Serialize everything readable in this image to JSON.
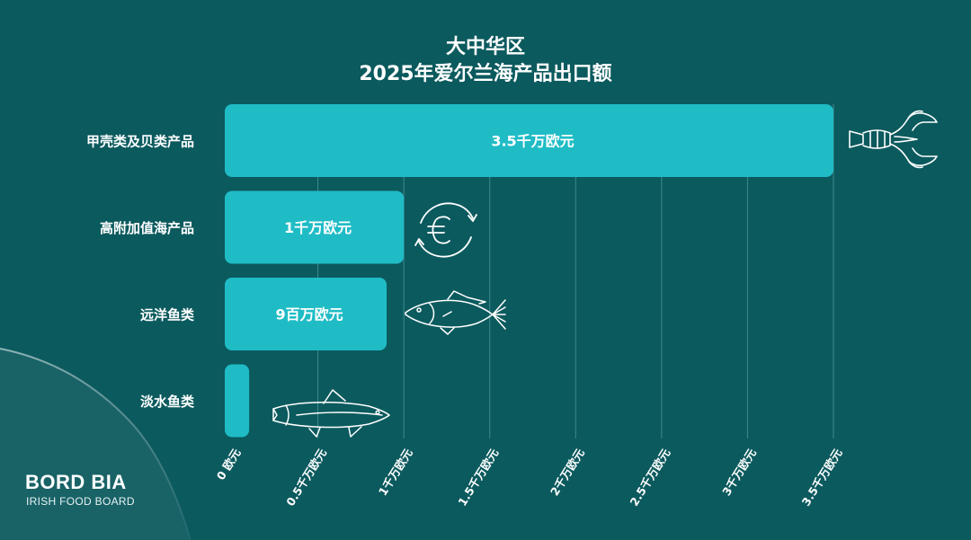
{
  "chart_data": {
    "type": "bar",
    "orientation": "horizontal",
    "title": "大中华区\n2025年爱尔兰海产品出口额",
    "title_lines": [
      "大中华区",
      "2025年爱尔兰海产品出口额"
    ],
    "categories": [
      "甲壳类及贝类产品",
      "高附加值海产品",
      "远洋鱼类",
      "淡水鱼类"
    ],
    "values": [
      35,
      10,
      9,
      1
    ],
    "unit": "百万欧元",
    "data_labels": [
      "3.5千万欧元",
      "1千万欧元",
      "9百万欧元",
      ""
    ],
    "x_ticks": [
      "0 欧元",
      "0.5千万欧元",
      "1千万欧元",
      "1.5千万欧元",
      "2千万欧元",
      "2.5千万欧元",
      "3千万欧元",
      "3.5千万欧元"
    ],
    "x_tick_values": [
      0,
      5,
      10,
      15,
      20,
      25,
      30,
      35
    ],
    "xlim": [
      0,
      35
    ],
    "grid": true,
    "category_icons": [
      "lobster-icon",
      "euro-exchange-icon",
      "mackerel-icon",
      "salmon-icon"
    ]
  },
  "brand": {
    "name": "BORD BIA",
    "tagline": "IRISH FOOD BOARD"
  },
  "colors": {
    "background": "#0b5a5e",
    "bar": "#1fbcc6",
    "text": "#ffffff",
    "gridline": "#3f8a8e"
  }
}
